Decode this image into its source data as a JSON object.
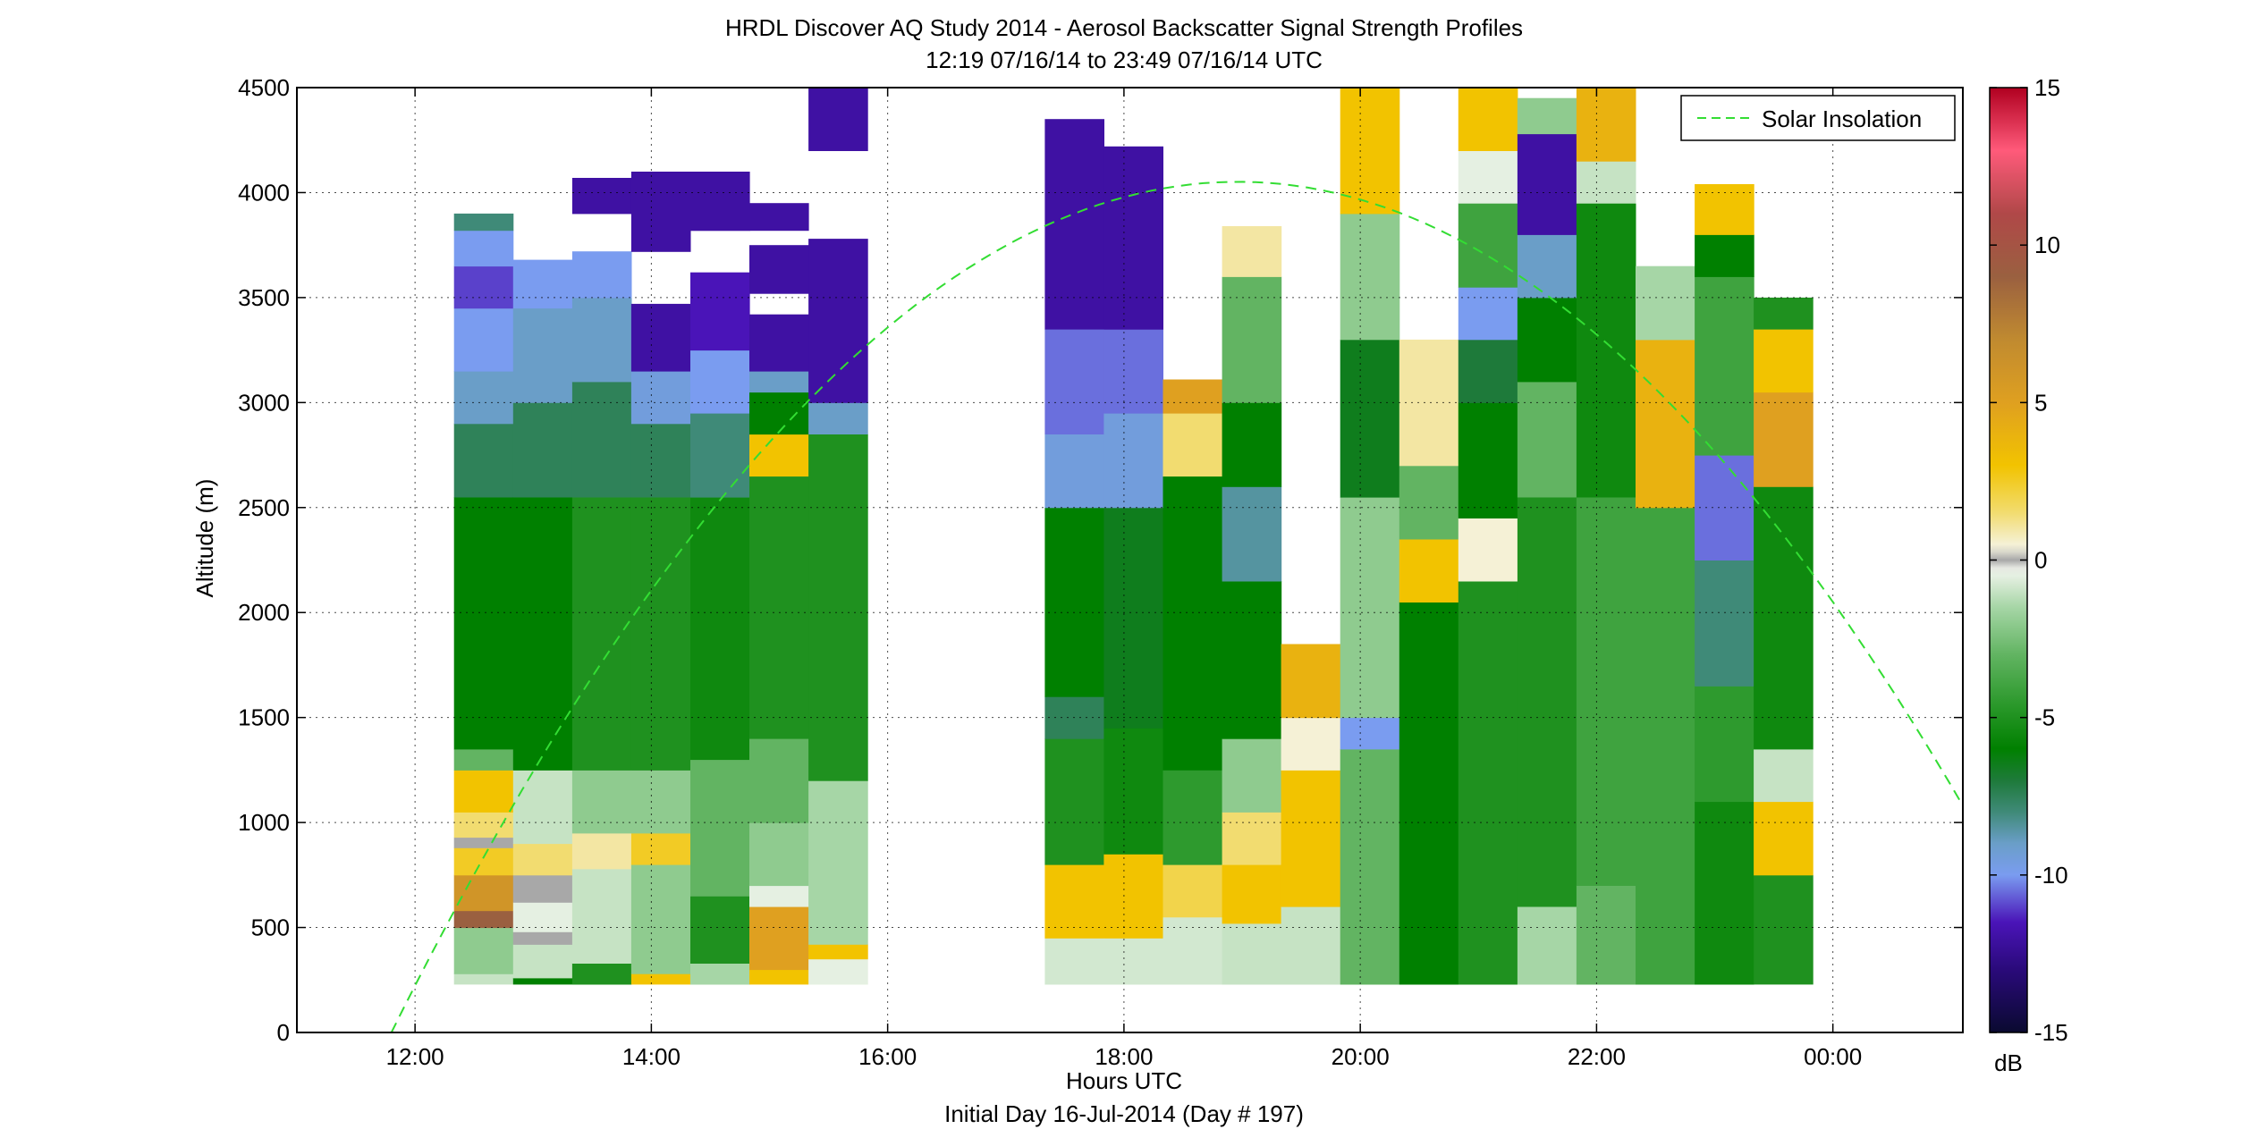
{
  "chart_data": {
    "type": "heatmap",
    "title": "HRDL Discover AQ Study 2014 - Aerosol Backscatter Signal Strength Profiles",
    "subtitle": "12:19 07/16/14 to 23:49 07/16/14  UTC",
    "xlabel": "Hours UTC",
    "xlabel2": "Initial Day 16-Jul-2014 (Day # 197)",
    "ylabel": "Altitude (m)",
    "xlim": [
      11.0,
      25.1
    ],
    "ylim": [
      0,
      4500
    ],
    "x_ticks": [
      12,
      14,
      16,
      18,
      20,
      22,
      24
    ],
    "x_tick_labels": [
      "12:00",
      "14:00",
      "16:00",
      "18:00",
      "20:00",
      "22:00",
      "00:00"
    ],
    "y_ticks": [
      0,
      500,
      1000,
      1500,
      2000,
      2500,
      3000,
      3500,
      4000,
      4500
    ],
    "y_tick_labels": [
      "0",
      "500",
      "1000",
      "1500",
      "2000",
      "2500",
      "3000",
      "3500",
      "4000",
      "4500"
    ],
    "grid": true,
    "colorbar": {
      "range": [
        -15,
        15
      ],
      "ticks": [
        -15,
        -10,
        -5,
        0,
        5,
        10,
        15
      ],
      "tick_labels": [
        "-15",
        "-10",
        "-5",
        "0",
        "5",
        "10",
        "15"
      ],
      "unit": "dB",
      "stops": [
        {
          "v": -15,
          "c": "#0a0a30"
        },
        {
          "v": -13,
          "c": "#2a0a7a"
        },
        {
          "v": -11.5,
          "c": "#4a14b8"
        },
        {
          "v": -10,
          "c": "#7a9cf0"
        },
        {
          "v": -9,
          "c": "#6a9ec8"
        },
        {
          "v": -8,
          "c": "#3f8a78"
        },
        {
          "v": -7,
          "c": "#1e7a3a"
        },
        {
          "v": -6,
          "c": "#008000"
        },
        {
          "v": -4.5,
          "c": "#2e9a2e"
        },
        {
          "v": -3,
          "c": "#62b462"
        },
        {
          "v": -1.5,
          "c": "#a6d6a6"
        },
        {
          "v": -0.3,
          "c": "#f2f5ee"
        },
        {
          "v": 0,
          "c": "#a8a8a8"
        },
        {
          "v": 0.4,
          "c": "#f5f3e0"
        },
        {
          "v": 1.5,
          "c": "#f2dc70"
        },
        {
          "v": 3,
          "c": "#f2c300"
        },
        {
          "v": 5,
          "c": "#dfa020"
        },
        {
          "v": 7,
          "c": "#c08a30"
        },
        {
          "v": 9,
          "c": "#9a6040"
        },
        {
          "v": 11,
          "c": "#b04848"
        },
        {
          "v": 13,
          "c": "#ff5a7a"
        },
        {
          "v": 15,
          "c": "#b00020"
        }
      ]
    },
    "legend": {
      "label": "Solar Insolation",
      "color": "#33dd33",
      "style": "dashed",
      "position": "top-right"
    },
    "solar_curve": {
      "x": [
        11.8,
        19.1,
        25.1
      ],
      "y": [
        0,
        4050,
        1080
      ]
    },
    "profiles": [
      {
        "x0": 12.33,
        "x1": 12.83,
        "segments": [
          {
            "from": 230,
            "to": 280,
            "v": -1
          },
          {
            "from": 280,
            "to": 500,
            "v": -2
          },
          {
            "from": 500,
            "to": 580,
            "v": 9
          },
          {
            "from": 580,
            "to": 750,
            "v": 6
          },
          {
            "from": 750,
            "to": 880,
            "v": 2.5
          },
          {
            "from": 880,
            "to": 930,
            "v": 0
          },
          {
            "from": 930,
            "to": 1050,
            "v": 1.5
          },
          {
            "from": 1050,
            "to": 1250,
            "v": 3
          },
          {
            "from": 1250,
            "to": 1350,
            "v": -3
          },
          {
            "from": 1350,
            "to": 2550,
            "v": -6
          },
          {
            "from": 2550,
            "to": 2900,
            "v": -7.5
          },
          {
            "from": 2900,
            "to": 3150,
            "v": -9
          },
          {
            "from": 3150,
            "to": 3450,
            "v": -10
          },
          {
            "from": 3450,
            "to": 3650,
            "v": -11
          },
          {
            "from": 3650,
            "to": 3820,
            "v": -10
          },
          {
            "from": 3820,
            "to": 3900,
            "v": -8
          }
        ]
      },
      {
        "x0": 12.83,
        "x1": 13.33,
        "segments": [
          {
            "from": 230,
            "to": 260,
            "v": -6
          },
          {
            "from": 260,
            "to": 420,
            "v": -1
          },
          {
            "from": 420,
            "to": 480,
            "v": 0
          },
          {
            "from": 480,
            "to": 620,
            "v": -0.5
          },
          {
            "from": 620,
            "to": 750,
            "v": 0
          },
          {
            "from": 750,
            "to": 900,
            "v": 1.5
          },
          {
            "from": 900,
            "to": 1250,
            "v": -1
          },
          {
            "from": 1250,
            "to": 2550,
            "v": -6
          },
          {
            "from": 2550,
            "to": 3000,
            "v": -7.5
          },
          {
            "from": 3000,
            "to": 3450,
            "v": -9
          },
          {
            "from": 3450,
            "to": 3680,
            "v": -10
          }
        ]
      },
      {
        "x0": 13.33,
        "x1": 13.83,
        "segments": [
          {
            "from": 230,
            "to": 330,
            "v": -5
          },
          {
            "from": 330,
            "to": 780,
            "v": -1
          },
          {
            "from": 780,
            "to": 950,
            "v": 1
          },
          {
            "from": 950,
            "to": 1250,
            "v": -2
          },
          {
            "from": 1250,
            "to": 2550,
            "v": -5
          },
          {
            "from": 2550,
            "to": 3100,
            "v": -7.5
          },
          {
            "from": 3100,
            "to": 3500,
            "v": -9
          },
          {
            "from": 3500,
            "to": 3720,
            "v": -10
          },
          {
            "from": 3900,
            "to": 4070,
            "v": -12
          }
        ]
      },
      {
        "x0": 13.83,
        "x1": 14.33,
        "segments": [
          {
            "from": 230,
            "to": 280,
            "v": 3
          },
          {
            "from": 280,
            "to": 800,
            "v": -2
          },
          {
            "from": 800,
            "to": 950,
            "v": 2.5
          },
          {
            "from": 950,
            "to": 1250,
            "v": -2
          },
          {
            "from": 1250,
            "to": 2550,
            "v": -5
          },
          {
            "from": 2550,
            "to": 2900,
            "v": -7.5
          },
          {
            "from": 2900,
            "to": 3150,
            "v": -9.5
          },
          {
            "from": 3150,
            "to": 3470,
            "v": -12
          },
          {
            "from": 3720,
            "to": 4100,
            "v": -12
          }
        ]
      },
      {
        "x0": 14.33,
        "x1": 14.83,
        "segments": [
          {
            "from": 230,
            "to": 330,
            "v": -1.5
          },
          {
            "from": 330,
            "to": 650,
            "v": -5
          },
          {
            "from": 650,
            "to": 1300,
            "v": -3
          },
          {
            "from": 1300,
            "to": 2550,
            "v": -5.5
          },
          {
            "from": 2550,
            "to": 2950,
            "v": -8
          },
          {
            "from": 2950,
            "to": 3250,
            "v": -10
          },
          {
            "from": 3250,
            "to": 3620,
            "v": -11.5
          },
          {
            "from": 3820,
            "to": 4100,
            "v": -12
          }
        ]
      },
      {
        "x0": 14.83,
        "x1": 15.33,
        "segments": [
          {
            "from": 230,
            "to": 300,
            "v": 3
          },
          {
            "from": 300,
            "to": 600,
            "v": 5
          },
          {
            "from": 600,
            "to": 700,
            "v": -0.5
          },
          {
            "from": 700,
            "to": 1000,
            "v": -2
          },
          {
            "from": 1000,
            "to": 1400,
            "v": -3
          },
          {
            "from": 1400,
            "to": 2650,
            "v": -5
          },
          {
            "from": 2650,
            "to": 2850,
            "v": 3
          },
          {
            "from": 2850,
            "to": 3050,
            "v": -6
          },
          {
            "from": 3050,
            "to": 3150,
            "v": -9
          },
          {
            "from": 3150,
            "to": 3420,
            "v": -12
          },
          {
            "from": 3520,
            "to": 3750,
            "v": -12
          },
          {
            "from": 3820,
            "to": 3950,
            "v": -12
          }
        ]
      },
      {
        "x0": 15.33,
        "x1": 15.83,
        "segments": [
          {
            "from": 230,
            "to": 350,
            "v": -0.5
          },
          {
            "from": 350,
            "to": 420,
            "v": 3
          },
          {
            "from": 420,
            "to": 1200,
            "v": -1.5
          },
          {
            "from": 1200,
            "to": 2850,
            "v": -5
          },
          {
            "from": 2850,
            "to": 3000,
            "v": -9
          },
          {
            "from": 3000,
            "to": 3780,
            "v": -12
          },
          {
            "from": 4200,
            "to": 4500,
            "v": -12
          }
        ]
      },
      {
        "x0": 17.33,
        "x1": 17.83,
        "segments": [
          {
            "from": 230,
            "to": 450,
            "v": -0.8
          },
          {
            "from": 450,
            "to": 800,
            "v": 3
          },
          {
            "from": 800,
            "to": 1400,
            "v": -5
          },
          {
            "from": 1400,
            "to": 1600,
            "v": -7.5
          },
          {
            "from": 1600,
            "to": 2500,
            "v": -6
          },
          {
            "from": 2500,
            "to": 2850,
            "v": -9.5
          },
          {
            "from": 2850,
            "to": 3350,
            "v": -10.5
          },
          {
            "from": 3350,
            "to": 4350,
            "v": -12
          }
        ]
      },
      {
        "x0": 17.83,
        "x1": 18.33,
        "segments": [
          {
            "from": 230,
            "to": 450,
            "v": -0.8
          },
          {
            "from": 450,
            "to": 850,
            "v": 3
          },
          {
            "from": 850,
            "to": 1450,
            "v": -5.5
          },
          {
            "from": 1450,
            "to": 2500,
            "v": -6.5
          },
          {
            "from": 2500,
            "to": 2950,
            "v": -9.5
          },
          {
            "from": 2950,
            "to": 3350,
            "v": -10.5
          },
          {
            "from": 3350,
            "to": 4220,
            "v": -12
          }
        ]
      },
      {
        "x0": 18.33,
        "x1": 18.83,
        "segments": [
          {
            "from": 230,
            "to": 550,
            "v": -0.8
          },
          {
            "from": 550,
            "to": 800,
            "v": 2
          },
          {
            "from": 800,
            "to": 1250,
            "v": -4.5
          },
          {
            "from": 1250,
            "to": 2650,
            "v": -6
          },
          {
            "from": 2650,
            "to": 2950,
            "v": 1.5
          },
          {
            "from": 2950,
            "to": 3110,
            "v": 5
          }
        ]
      },
      {
        "x0": 18.83,
        "x1": 19.33,
        "segments": [
          {
            "from": 230,
            "to": 520,
            "v": -1
          },
          {
            "from": 520,
            "to": 800,
            "v": 3
          },
          {
            "from": 800,
            "to": 1050,
            "v": 1.5
          },
          {
            "from": 1050,
            "to": 1400,
            "v": -2
          },
          {
            "from": 1400,
            "to": 2150,
            "v": -6
          },
          {
            "from": 2150,
            "to": 2600,
            "v": -8.5
          },
          {
            "from": 2600,
            "to": 3000,
            "v": -6
          },
          {
            "from": 3000,
            "to": 3600,
            "v": -3
          },
          {
            "from": 3600,
            "to": 3840,
            "v": 1
          }
        ]
      },
      {
        "x0": 19.33,
        "x1": 19.83,
        "segments": [
          {
            "from": 230,
            "to": 600,
            "v": -1
          },
          {
            "from": 600,
            "to": 800,
            "v": 3
          },
          {
            "from": 800,
            "to": 1250,
            "v": 3
          },
          {
            "from": 1250,
            "to": 1500,
            "v": 0.5
          },
          {
            "from": 1500,
            "to": 1850,
            "v": 4
          }
        ]
      },
      {
        "x0": 19.83,
        "x1": 20.33,
        "segments": [
          {
            "from": 230,
            "to": 1350,
            "v": -3
          },
          {
            "from": 1350,
            "to": 1500,
            "v": -10
          },
          {
            "from": 1500,
            "to": 2550,
            "v": -2
          },
          {
            "from": 2550,
            "to": 3300,
            "v": -6.5
          },
          {
            "from": 3300,
            "to": 3900,
            "v": -2
          },
          {
            "from": 3900,
            "to": 4500,
            "v": 3
          }
        ]
      },
      {
        "x0": 20.33,
        "x1": 20.83,
        "segments": [
          {
            "from": 230,
            "to": 2050,
            "v": -6
          },
          {
            "from": 2050,
            "to": 2350,
            "v": 3
          },
          {
            "from": 2350,
            "to": 2700,
            "v": -3
          },
          {
            "from": 2700,
            "to": 3300,
            "v": 1
          }
        ]
      },
      {
        "x0": 20.83,
        "x1": 21.33,
        "segments": [
          {
            "from": 230,
            "to": 2150,
            "v": -5
          },
          {
            "from": 2150,
            "to": 2450,
            "v": 0.5
          },
          {
            "from": 2450,
            "to": 3000,
            "v": -6
          },
          {
            "from": 3000,
            "to": 3300,
            "v": -7
          },
          {
            "from": 3300,
            "to": 3550,
            "v": -10
          },
          {
            "from": 3550,
            "to": 3950,
            "v": -4
          },
          {
            "from": 3950,
            "to": 4200,
            "v": -0.5
          },
          {
            "from": 4200,
            "to": 4500,
            "v": 3
          }
        ]
      },
      {
        "x0": 21.33,
        "x1": 21.83,
        "segments": [
          {
            "from": 230,
            "to": 600,
            "v": -1.5
          },
          {
            "from": 600,
            "to": 2550,
            "v": -5
          },
          {
            "from": 2550,
            "to": 3100,
            "v": -3
          },
          {
            "from": 3100,
            "to": 3500,
            "v": -6
          },
          {
            "from": 3500,
            "to": 3800,
            "v": -9
          },
          {
            "from": 3800,
            "to": 4280,
            "v": -12
          },
          {
            "from": 4280,
            "to": 4450,
            "v": -2
          }
        ]
      },
      {
        "x0": 21.83,
        "x1": 22.33,
        "segments": [
          {
            "from": 230,
            "to": 700,
            "v": -3
          },
          {
            "from": 700,
            "to": 2550,
            "v": -4
          },
          {
            "from": 2550,
            "to": 3950,
            "v": -5.5
          },
          {
            "from": 3950,
            "to": 4150,
            "v": -1
          },
          {
            "from": 4150,
            "to": 4500,
            "v": 4
          }
        ]
      },
      {
        "x0": 22.33,
        "x1": 22.83,
        "segments": [
          {
            "from": 230,
            "to": 2500,
            "v": -4
          },
          {
            "from": 2500,
            "to": 3300,
            "v": 4
          },
          {
            "from": 3300,
            "to": 3650,
            "v": -1.5
          }
        ]
      },
      {
        "x0": 22.83,
        "x1": 23.33,
        "segments": [
          {
            "from": 230,
            "to": 1100,
            "v": -5.5
          },
          {
            "from": 1100,
            "to": 1650,
            "v": -4.5
          },
          {
            "from": 1650,
            "to": 2250,
            "v": -8
          },
          {
            "from": 2250,
            "to": 2750,
            "v": -10.5
          },
          {
            "from": 2750,
            "to": 3600,
            "v": -4
          },
          {
            "from": 3600,
            "to": 3800,
            "v": -6
          },
          {
            "from": 3800,
            "to": 4040,
            "v": 3
          }
        ]
      },
      {
        "x0": 23.33,
        "x1": 23.83,
        "segments": [
          {
            "from": 230,
            "to": 750,
            "v": -5
          },
          {
            "from": 750,
            "to": 1100,
            "v": 3
          },
          {
            "from": 1100,
            "to": 1350,
            "v": -1
          },
          {
            "from": 1350,
            "to": 2600,
            "v": -5.5
          },
          {
            "from": 2600,
            "to": 3050,
            "v": 5
          },
          {
            "from": 3050,
            "to": 3350,
            "v": 3
          },
          {
            "from": 3350,
            "to": 3500,
            "v": -5
          }
        ]
      }
    ]
  }
}
